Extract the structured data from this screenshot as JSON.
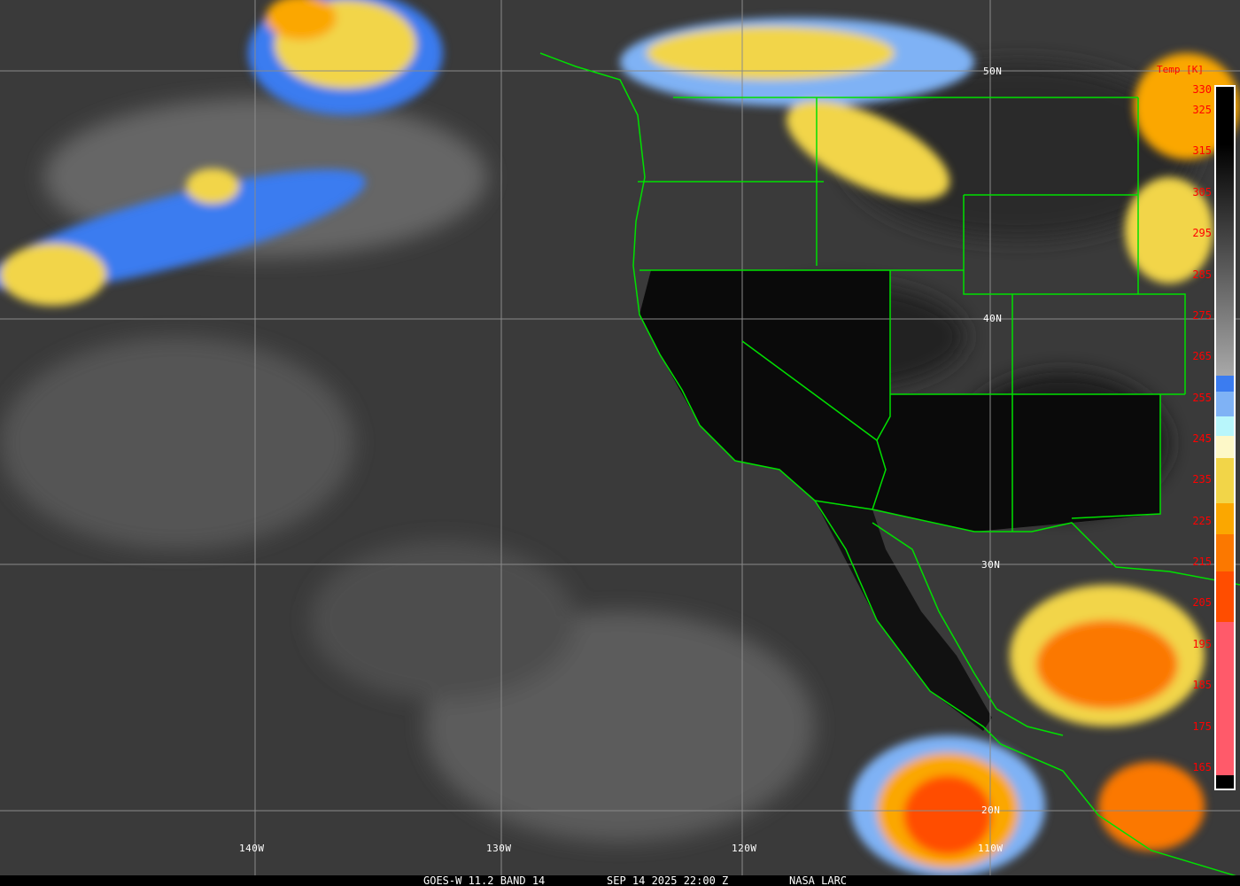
{
  "graticule": {
    "latitudes": [
      "50N",
      "40N",
      "30N",
      "20N"
    ],
    "longitudes": [
      "140W",
      "130W",
      "120W",
      "110W"
    ]
  },
  "colorbar": {
    "title": "Temp [K]",
    "labels": [
      "330",
      "325",
      "315",
      "305",
      "295",
      "285",
      "275",
      "265",
      "255",
      "245",
      "235",
      "225",
      "215",
      "205",
      "195",
      "185",
      "175",
      "165"
    ],
    "colors": {
      "cold_blue": "#3b7cf0",
      "light_blue": "#7fb2f5",
      "cyan": "#b8f6fb",
      "pale_yellow": "#fdf8c8",
      "yellow": "#f2d548",
      "orange": "#fba700",
      "dark_orange": "#fb7800",
      "red_orange": "#ff4d00",
      "pink": "#ff5a6a"
    }
  },
  "caption": {
    "satellite": "GOES-W 11.2 BAND 14",
    "datetime": "SEP 14 2025 22:00 Z",
    "credit": "NASA LARC"
  },
  "colors": {
    "boundaries": "#00e000",
    "grid": "#8a8a8a",
    "labels": "#ff0000"
  }
}
